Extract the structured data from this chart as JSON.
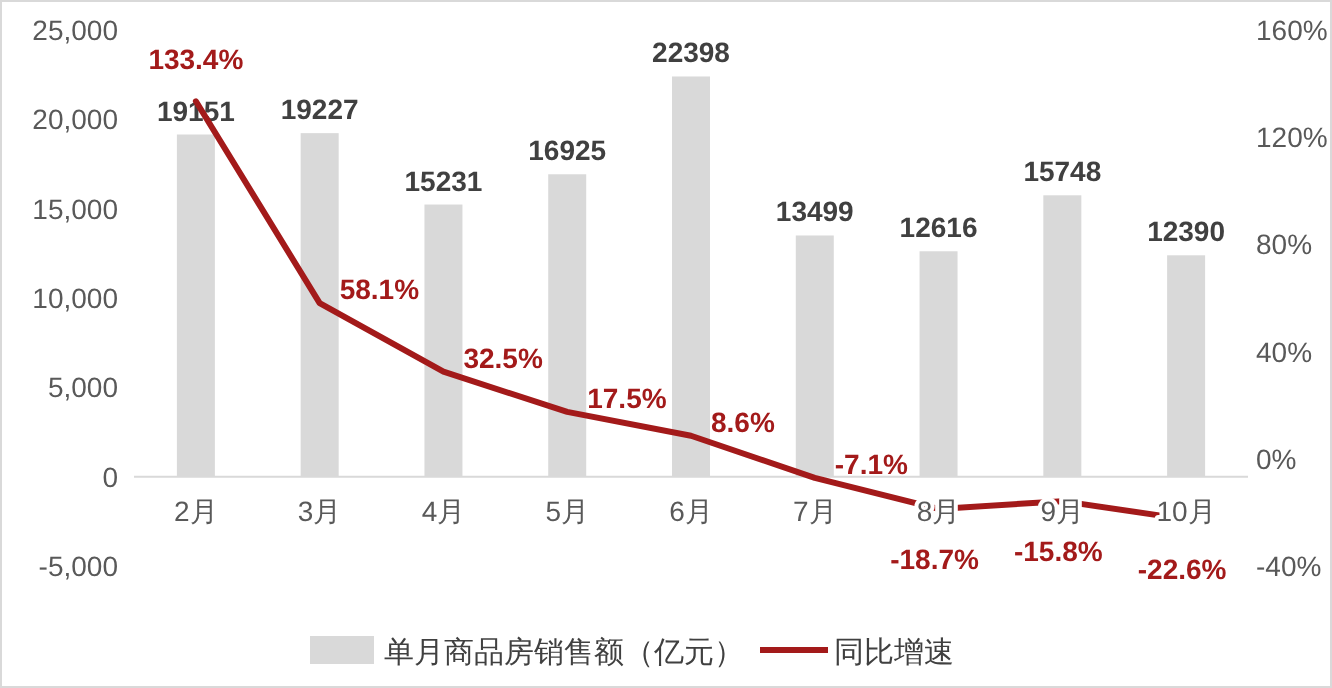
{
  "chart_data": {
    "type": "bar",
    "categories": [
      "2月",
      "3月",
      "4月",
      "5月",
      "6月",
      "7月",
      "8月",
      "9月",
      "10月"
    ],
    "series": [
      {
        "name": "单月商品房销售额（亿元）",
        "color": "#d9d9d9",
        "values": [
          19151,
          19227,
          15231,
          16925,
          22398,
          13499,
          12616,
          15748,
          12390
        ],
        "value_labels": [
          "19151",
          "19227",
          "15231",
          "16925",
          "22398",
          "13499",
          "12616",
          "15748",
          "12390"
        ]
      },
      {
        "name": "同比增速",
        "type": "line",
        "axis": "y2",
        "color": "#a31a1a",
        "values": [
          133.4,
          58.1,
          32.5,
          17.5,
          8.6,
          -7.1,
          -18.7,
          -15.8,
          -22.6
        ],
        "value_labels": [
          "133.4%",
          "58.1%",
          "32.5%",
          "17.5%",
          "8.6%",
          "-7.1%",
          "-18.7%",
          "-15.8%",
          "-22.6%"
        ]
      }
    ],
    "ylim": [
      -5000,
      25000
    ],
    "yticks": [
      {
        "value": -5000,
        "label": "-5,000"
      },
      0,
      {
        "value": 5000,
        "label": "5,000"
      },
      {
        "value": 10000,
        "label": "10,000"
      },
      {
        "value": 15000,
        "label": "15,000"
      },
      {
        "value": 20000,
        "label": "20,000"
      },
      {
        "value": 25000,
        "label": "25,000"
      }
    ],
    "y2lim": [
      -40,
      160
    ],
    "y2ticks": [
      {
        "value": -40,
        "label": "-40%"
      },
      {
        "value": 0,
        "label": "0%"
      },
      {
        "value": 40,
        "label": "40%"
      },
      {
        "value": 80,
        "label": "80%"
      },
      {
        "value": 120,
        "label": "120%"
      },
      {
        "value": 160,
        "label": "160%"
      }
    ],
    "legend": "bottom"
  }
}
